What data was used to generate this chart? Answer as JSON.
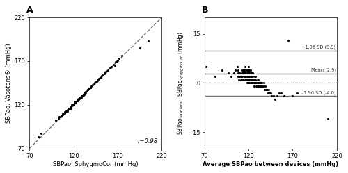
{
  "panel_A": {
    "title": "A",
    "xlabel": "SBPao, SphygmoCor (mmHg)",
    "ylabel": "SBPao, Vasotens® (mmHg)",
    "xlim": [
      70,
      220
    ],
    "ylim": [
      70,
      220
    ],
    "xticks": [
      70,
      120,
      170,
      220
    ],
    "yticks": [
      70,
      120,
      170,
      220
    ],
    "r_text": "r=0.98",
    "scatter_x": [
      80,
      83,
      100,
      103,
      104,
      105,
      106,
      107,
      108,
      108,
      109,
      110,
      110,
      110,
      111,
      112,
      112,
      113,
      113,
      114,
      114,
      115,
      115,
      115,
      115,
      116,
      116,
      116,
      116,
      117,
      117,
      117,
      117,
      118,
      118,
      118,
      118,
      119,
      119,
      119,
      119,
      120,
      120,
      120,
      120,
      120,
      121,
      121,
      121,
      121,
      121,
      122,
      122,
      122,
      122,
      123,
      123,
      123,
      124,
      124,
      124,
      125,
      125,
      125,
      125,
      126,
      126,
      127,
      127,
      127,
      128,
      128,
      129,
      129,
      130,
      130,
      131,
      131,
      132,
      133,
      133,
      133,
      134,
      134,
      135,
      136,
      136,
      137,
      138,
      138,
      139,
      139,
      140,
      141,
      141,
      142,
      143,
      144,
      145,
      146,
      147,
      148,
      149,
      150,
      151,
      152,
      153,
      155,
      156,
      157,
      158,
      159,
      161,
      162,
      163,
      165,
      167,
      168,
      169,
      170,
      172,
      175,
      195,
      205
    ],
    "scatter_y": [
      83,
      87,
      102,
      105,
      106,
      106,
      107,
      108,
      109,
      110,
      110,
      110,
      111,
      112,
      112,
      113,
      113,
      113,
      114,
      115,
      115,
      115,
      115,
      116,
      116,
      116,
      116,
      117,
      117,
      117,
      118,
      118,
      118,
      119,
      119,
      119,
      120,
      120,
      120,
      120,
      120,
      121,
      121,
      121,
      121,
      121,
      122,
      122,
      122,
      122,
      122,
      123,
      123,
      123,
      123,
      124,
      124,
      124,
      125,
      125,
      125,
      126,
      126,
      126,
      126,
      126,
      127,
      127,
      128,
      128,
      129,
      129,
      129,
      130,
      130,
      130,
      131,
      132,
      132,
      133,
      133,
      134,
      134,
      135,
      136,
      137,
      137,
      138,
      139,
      139,
      140,
      140,
      141,
      142,
      142,
      143,
      144,
      145,
      146,
      147,
      148,
      149,
      150,
      151,
      152,
      153,
      154,
      156,
      157,
      158,
      159,
      160,
      162,
      163,
      164,
      166,
      165,
      169,
      170,
      171,
      173,
      176,
      185,
      193
    ]
  },
  "panel_B": {
    "title": "B",
    "xlabel": "Average SBPao between devices (mmHg)",
    "ylabel_text": "SBPao$_{Vasotens}$−SBPao$_{SphygmoCor}$ (mmHg)",
    "xlim": [
      70,
      220
    ],
    "ylim": [
      -20,
      20
    ],
    "xticks": [
      70,
      120,
      170,
      220
    ],
    "yticks": [
      -15,
      0,
      15
    ],
    "mean_val": 2.9,
    "upper_loa": 9.9,
    "lower_loa": -4.0,
    "mean_label": "Mean (2.9)",
    "upper_label": "+1.96 SD (9.9)",
    "lower_label": "-1.96 SD (-4.0)",
    "scatter_x": [
      72,
      82,
      90,
      97,
      100,
      103,
      105,
      107,
      108,
      108,
      108,
      109,
      109,
      110,
      110,
      111,
      111,
      112,
      112,
      112,
      113,
      113,
      113,
      114,
      114,
      114,
      115,
      115,
      115,
      116,
      116,
      116,
      116,
      117,
      117,
      117,
      117,
      118,
      118,
      118,
      118,
      118,
      119,
      119,
      119,
      119,
      119,
      120,
      120,
      120,
      120,
      120,
      120,
      121,
      121,
      121,
      121,
      121,
      122,
      122,
      122,
      122,
      122,
      123,
      123,
      123,
      123,
      124,
      124,
      124,
      124,
      125,
      125,
      125,
      125,
      126,
      126,
      126,
      127,
      127,
      127,
      128,
      128,
      128,
      129,
      129,
      130,
      130,
      130,
      131,
      131,
      131,
      132,
      132,
      133,
      133,
      134,
      134,
      135,
      135,
      136,
      137,
      137,
      138,
      139,
      140,
      141,
      142,
      143,
      144,
      145,
      146,
      148,
      150,
      152,
      155,
      157,
      160,
      165,
      170,
      175,
      210
    ],
    "scatter_y": [
      5,
      2,
      4,
      3,
      2,
      3,
      4,
      5,
      2,
      3,
      4,
      1,
      3,
      2,
      3,
      1,
      2,
      2,
      3,
      4,
      1,
      2,
      3,
      1,
      3,
      4,
      2,
      3,
      4,
      1,
      2,
      3,
      5,
      1,
      2,
      3,
      4,
      0,
      1,
      2,
      3,
      4,
      0,
      1,
      2,
      3,
      4,
      0,
      1,
      2,
      3,
      4,
      5,
      0,
      1,
      2,
      3,
      4,
      0,
      1,
      2,
      3,
      4,
      0,
      1,
      2,
      3,
      0,
      1,
      2,
      3,
      0,
      1,
      2,
      3,
      -1,
      0,
      1,
      0,
      1,
      2,
      0,
      1,
      2,
      -1,
      0,
      -1,
      0,
      1,
      -1,
      0,
      1,
      -1,
      0,
      -1,
      0,
      -1,
      0,
      -1,
      0,
      -1,
      -1,
      0,
      -2,
      -1,
      -2,
      -2,
      -3,
      -2,
      -3,
      -3,
      -4,
      -4,
      -5,
      -4,
      -3,
      -3,
      -4,
      13,
      -4,
      -3,
      -11
    ]
  },
  "bg_color": "#ffffff",
  "text_color": "#000000",
  "line_color": "#707070",
  "scatter_color": "#000000",
  "scatter_size": 5
}
